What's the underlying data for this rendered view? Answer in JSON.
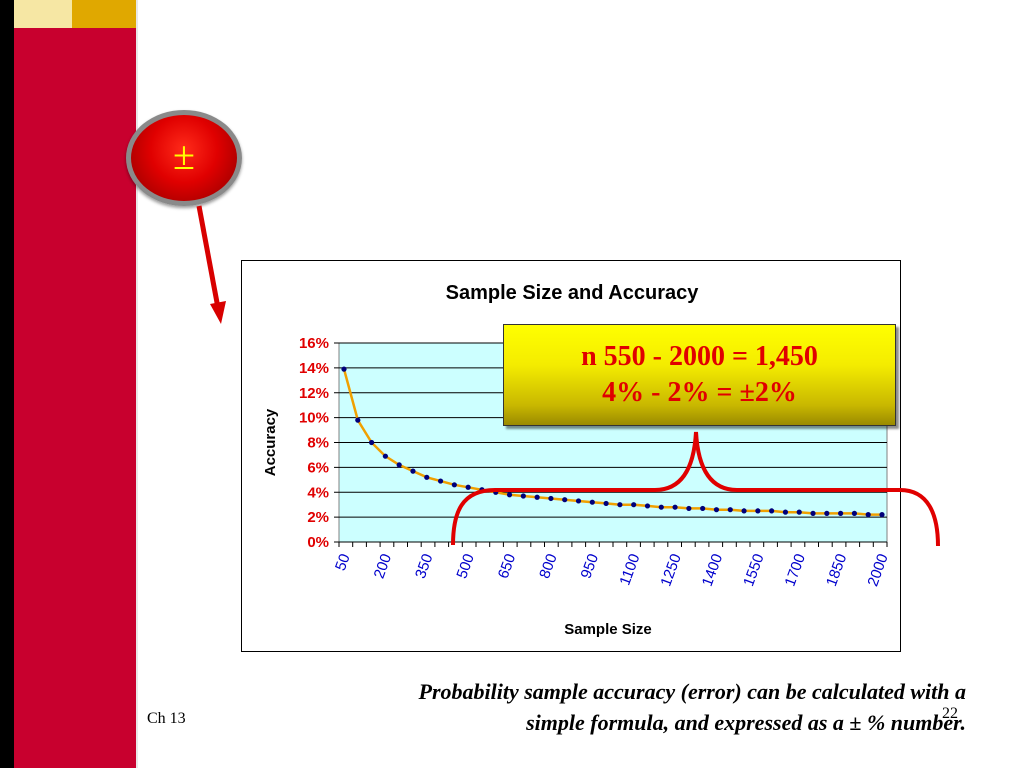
{
  "slide": {
    "badge_symbol": "±",
    "callout_line1": "n 550 - 2000 = 1,450",
    "callout_line2": "4% - 2% =  ±2%",
    "caption_line1": "Probability sample accuracy (error) can be calculated with a",
    "caption_line2": "simple formula, and expressed as a ± % number.",
    "footer_chapter": "Ch 13",
    "footer_page": "22"
  },
  "colors": {
    "sidebar_red": "#c8002e",
    "plot_fill": "#ccffff",
    "curve": "#f0a000",
    "points": "#00007a",
    "bracket": "#e00000",
    "y_tick_text": "#e00000",
    "x_tick_text": "#0000cc"
  },
  "chart_data": {
    "type": "line",
    "title": "Sample Size and Accuracy",
    "xlabel": "Sample Size",
    "ylabel": "Accuracy",
    "ylim": [
      0,
      0.16
    ],
    "y_ticks": [
      "0%",
      "2%",
      "4%",
      "6%",
      "8%",
      "10%",
      "12%",
      "14%",
      "16%"
    ],
    "x_ticks": [
      "50",
      "200",
      "350",
      "500",
      "650",
      "800",
      "950",
      "1100",
      "1250",
      "1400",
      "1550",
      "1700",
      "1850",
      "2000"
    ],
    "grid": true,
    "legend": "none",
    "x": [
      50,
      100,
      150,
      200,
      250,
      300,
      350,
      400,
      450,
      500,
      550,
      600,
      650,
      700,
      750,
      800,
      850,
      900,
      950,
      1000,
      1050,
      1100,
      1150,
      1200,
      1250,
      1300,
      1350,
      1400,
      1450,
      1500,
      1550,
      1600,
      1650,
      1700,
      1750,
      1800,
      1850,
      1900,
      1950,
      2000
    ],
    "series": [
      {
        "values": [
          0.139,
          0.098,
          0.08,
          0.069,
          0.062,
          0.057,
          0.052,
          0.049,
          0.046,
          0.044,
          0.042,
          0.04,
          0.038,
          0.037,
          0.036,
          0.035,
          0.034,
          0.033,
          0.032,
          0.031,
          0.03,
          0.03,
          0.029,
          0.028,
          0.028,
          0.027,
          0.027,
          0.026,
          0.026,
          0.025,
          0.025,
          0.025,
          0.024,
          0.024,
          0.023,
          0.023,
          0.023,
          0.023,
          0.022,
          0.022
        ]
      }
    ]
  }
}
